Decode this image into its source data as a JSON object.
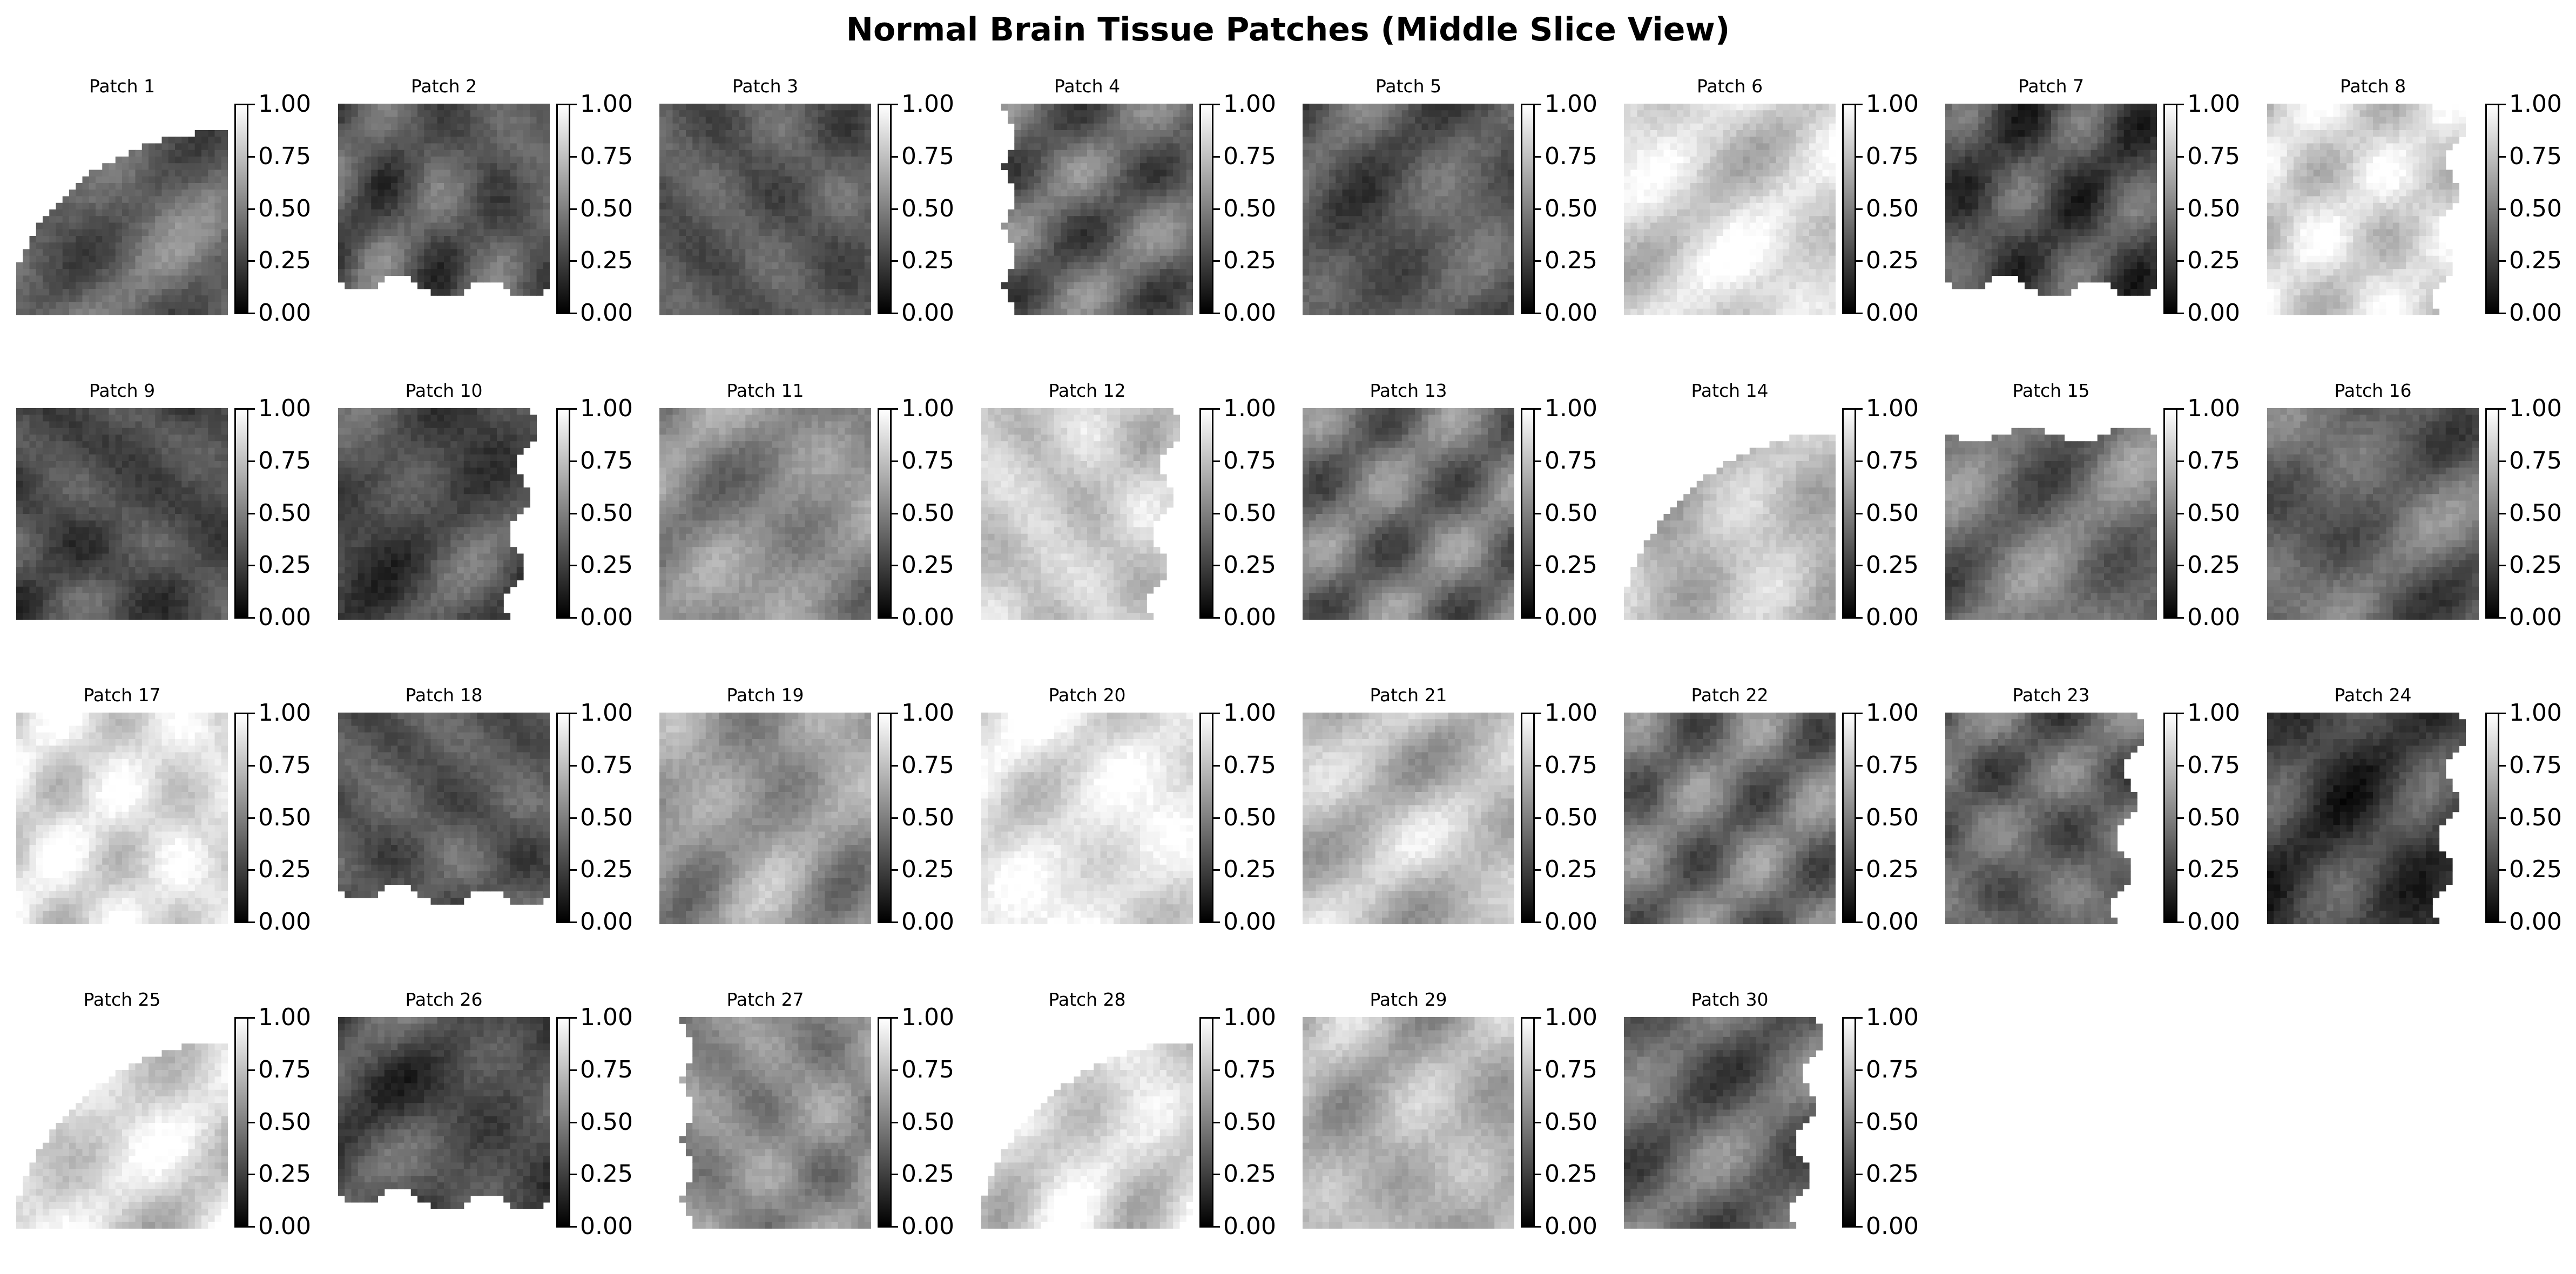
{
  "figure": {
    "title": "Normal Brain Tissue Patches (Middle Slice View)",
    "colormap": "gray",
    "colorbar_ticks": [
      "1.00",
      "0.75",
      "0.50",
      "0.25",
      "0.00"
    ]
  },
  "patches": [
    {
      "label": "Patch 1",
      "mean_intensity": 0.4,
      "shape": "arc-bottom-left"
    },
    {
      "label": "Patch 2",
      "mean_intensity": 0.35,
      "shape": "cut-bottom"
    },
    {
      "label": "Patch 3",
      "mean_intensity": 0.35,
      "shape": "full"
    },
    {
      "label": "Patch 4",
      "mean_intensity": 0.4,
      "shape": "cut-left"
    },
    {
      "label": "Patch 5",
      "mean_intensity": 0.35,
      "shape": "full"
    },
    {
      "label": "Patch 6",
      "mean_intensity": 0.85,
      "shape": "full"
    },
    {
      "label": "Patch 7",
      "mean_intensity": 0.3,
      "shape": "cut-bottom"
    },
    {
      "label": "Patch 8",
      "mean_intensity": 0.85,
      "shape": "cut-right"
    },
    {
      "label": "Patch 9",
      "mean_intensity": 0.3,
      "shape": "full"
    },
    {
      "label": "Patch 10",
      "mean_intensity": 0.3,
      "shape": "cut-right"
    },
    {
      "label": "Patch 11",
      "mean_intensity": 0.55,
      "shape": "full"
    },
    {
      "label": "Patch 12",
      "mean_intensity": 0.8,
      "shape": "cut-right"
    },
    {
      "label": "Patch 13",
      "mean_intensity": 0.45,
      "shape": "full"
    },
    {
      "label": "Patch 14",
      "mean_intensity": 0.75,
      "shape": "arc-top-left"
    },
    {
      "label": "Patch 15",
      "mean_intensity": 0.45,
      "shape": "cut-top"
    },
    {
      "label": "Patch 16",
      "mean_intensity": 0.4,
      "shape": "full"
    },
    {
      "label": "Patch 17",
      "mean_intensity": 0.88,
      "shape": "full"
    },
    {
      "label": "Patch 18",
      "mean_intensity": 0.35,
      "shape": "cut-bottom"
    },
    {
      "label": "Patch 19",
      "mean_intensity": 0.6,
      "shape": "full"
    },
    {
      "label": "Patch 20",
      "mean_intensity": 0.9,
      "shape": "full"
    },
    {
      "label": "Patch 21",
      "mean_intensity": 0.75,
      "shape": "full"
    },
    {
      "label": "Patch 22",
      "mean_intensity": 0.45,
      "shape": "full"
    },
    {
      "label": "Patch 23",
      "mean_intensity": 0.4,
      "shape": "cut-right"
    },
    {
      "label": "Patch 24",
      "mean_intensity": 0.25,
      "shape": "cut-right"
    },
    {
      "label": "Patch 25",
      "mean_intensity": 0.85,
      "shape": "arc-top-left"
    },
    {
      "label": "Patch 26",
      "mean_intensity": 0.3,
      "shape": "cut-bottom"
    },
    {
      "label": "Patch 27",
      "mean_intensity": 0.55,
      "shape": "cut-left"
    },
    {
      "label": "Patch 28",
      "mean_intensity": 0.85,
      "shape": "arc-top-left"
    },
    {
      "label": "Patch 29",
      "mean_intensity": 0.7,
      "shape": "full"
    },
    {
      "label": "Patch 30",
      "mean_intensity": 0.4,
      "shape": "cut-right"
    }
  ]
}
